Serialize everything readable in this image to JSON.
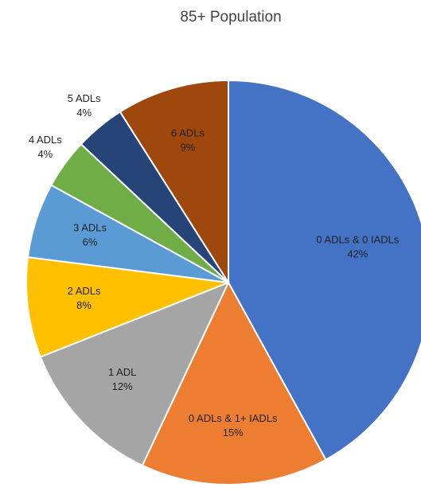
{
  "chart_data": {
    "type": "pie",
    "title": "85+ Population",
    "categories": [
      "0 ADLs & 0 IADLs",
      "0 ADLs & 1+ IADLs",
      "1 ADL",
      "2 ADLs",
      "3 ADLs",
      "4 ADLs",
      "5 ADLs",
      "6 ADLs"
    ],
    "values": [
      42,
      15,
      12,
      8,
      6,
      4,
      4,
      9
    ],
    "value_labels": [
      "42%",
      "15%",
      "12%",
      "8%",
      "6%",
      "4%",
      "4%",
      "9%"
    ],
    "colors": [
      "#4472c4",
      "#ed7d31",
      "#a5a5a5",
      "#ffc000",
      "#5b9bd5",
      "#70ad47",
      "#264478",
      "#9e480e"
    ]
  }
}
